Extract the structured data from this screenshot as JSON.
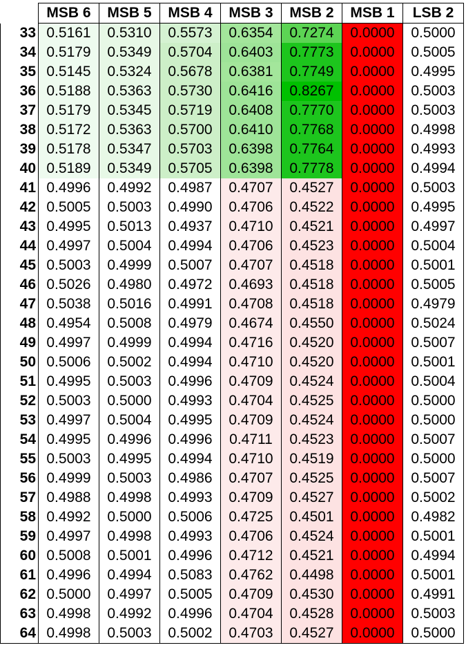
{
  "table": {
    "columns": [
      "",
      "MSB 6",
      "MSB 5",
      "MSB 4",
      "MSB 3",
      "MSB 2",
      "MSB 1",
      "LSB 2"
    ],
    "rows": [
      {
        "label": "33",
        "values": [
          "0.5161",
          "0.5310",
          "0.5573",
          "0.6354",
          "0.7274",
          "0.0000",
          "0.5000"
        ],
        "fills": [
          "#eefbef",
          "#e7f8e6",
          "#d5f2d2",
          "#a3e69b",
          "#5cd454",
          "#ff0000",
          ""
        ]
      },
      {
        "label": "34",
        "values": [
          "0.5179",
          "0.5349",
          "0.5704",
          "0.6403",
          "0.7773",
          "0.0000",
          "0.5005"
        ],
        "fills": [
          "#eefbef",
          "#e7f8e6",
          "#cdefc8",
          "#9ee498",
          "#1dc51d",
          "#ff0000",
          ""
        ]
      },
      {
        "label": "35",
        "values": [
          "0.5145",
          "0.5324",
          "0.5678",
          "0.6381",
          "0.7749",
          "0.0000",
          "0.4995"
        ],
        "fills": [
          "#eefbef",
          "#e7f8e6",
          "#cdefc8",
          "#a3e69b",
          "#1dc51d",
          "#ff0000",
          ""
        ]
      },
      {
        "label": "36",
        "values": [
          "0.5188",
          "0.5363",
          "0.5730",
          "0.6416",
          "0.8267",
          "0.0000",
          "0.5003"
        ],
        "fills": [
          "#eefbef",
          "#e7f8e6",
          "#cdefc8",
          "#9ee498",
          "#00c000",
          "#ff0000",
          ""
        ]
      },
      {
        "label": "37",
        "values": [
          "0.5179",
          "0.5345",
          "0.5719",
          "0.6408",
          "0.7770",
          "0.0000",
          "0.5003"
        ],
        "fills": [
          "#eefbef",
          "#e7f8e6",
          "#cdefc8",
          "#9ee498",
          "#1dc51d",
          "#ff0000",
          ""
        ]
      },
      {
        "label": "38",
        "values": [
          "0.5172",
          "0.5363",
          "0.5700",
          "0.6410",
          "0.7768",
          "0.0000",
          "0.4998"
        ],
        "fills": [
          "#eefbef",
          "#e7f8e6",
          "#cdefc8",
          "#9ee498",
          "#1dc51d",
          "#ff0000",
          ""
        ]
      },
      {
        "label": "39",
        "values": [
          "0.5178",
          "0.5347",
          "0.5703",
          "0.6398",
          "0.7764",
          "0.0000",
          "0.4993"
        ],
        "fills": [
          "#eefbef",
          "#e7f8e6",
          "#cdefc8",
          "#9ee498",
          "#1dc51d",
          "#ff0000",
          ""
        ]
      },
      {
        "label": "40",
        "values": [
          "0.5189",
          "0.5349",
          "0.5705",
          "0.6398",
          "0.7778",
          "0.0000",
          "0.4994"
        ],
        "fills": [
          "#eefbef",
          "#e7f8e6",
          "#cdefc8",
          "#9ee498",
          "#1dc51d",
          "#ff0000",
          ""
        ]
      },
      {
        "label": "41",
        "values": [
          "0.4996",
          "0.4992",
          "0.4987",
          "0.4707",
          "0.4527",
          "0.0000",
          "0.5003"
        ],
        "fills": [
          "",
          "",
          "",
          "#fdeaea",
          "#fde2e2",
          "#ff0000",
          ""
        ]
      },
      {
        "label": "42",
        "values": [
          "0.5005",
          "0.5003",
          "0.4990",
          "0.4706",
          "0.4522",
          "0.0000",
          "0.4995"
        ],
        "fills": [
          "",
          "",
          "",
          "#fdeaea",
          "#fde2e2",
          "#ff0000",
          ""
        ]
      },
      {
        "label": "43",
        "values": [
          "0.4995",
          "0.5013",
          "0.4937",
          "0.4710",
          "0.4521",
          "0.0000",
          "0.4997"
        ],
        "fills": [
          "",
          "",
          "",
          "#fdeaea",
          "#fde2e2",
          "#ff0000",
          ""
        ]
      },
      {
        "label": "44",
        "values": [
          "0.4997",
          "0.5004",
          "0.4994",
          "0.4706",
          "0.4523",
          "0.0000",
          "0.5004"
        ],
        "fills": [
          "",
          "",
          "",
          "#fdeaea",
          "#fde2e2",
          "#ff0000",
          ""
        ]
      },
      {
        "label": "45",
        "values": [
          "0.5003",
          "0.4999",
          "0.5007",
          "0.4707",
          "0.4518",
          "0.0000",
          "0.5001"
        ],
        "fills": [
          "",
          "",
          "",
          "#fdeaea",
          "#fde2e2",
          "#ff0000",
          ""
        ]
      },
      {
        "label": "46",
        "values": [
          "0.5026",
          "0.4980",
          "0.4972",
          "0.4693",
          "0.4518",
          "0.0000",
          "0.5005"
        ],
        "fills": [
          "",
          "",
          "",
          "#fdeaea",
          "#fde2e2",
          "#ff0000",
          ""
        ]
      },
      {
        "label": "47",
        "values": [
          "0.5038",
          "0.5016",
          "0.4991",
          "0.4708",
          "0.4518",
          "0.0000",
          "0.4979"
        ],
        "fills": [
          "",
          "",
          "",
          "#fdeaea",
          "#fde2e2",
          "#ff0000",
          ""
        ]
      },
      {
        "label": "48",
        "values": [
          "0.4954",
          "0.5008",
          "0.4979",
          "0.4674",
          "0.4550",
          "0.0000",
          "0.5024"
        ],
        "fills": [
          "",
          "",
          "",
          "#fdeaea",
          "#fde2e2",
          "#ff0000",
          ""
        ]
      },
      {
        "label": "49",
        "values": [
          "0.4997",
          "0.4999",
          "0.4994",
          "0.4716",
          "0.4520",
          "0.0000",
          "0.5007"
        ],
        "fills": [
          "",
          "",
          "",
          "#fdeaea",
          "#fde2e2",
          "#ff0000",
          ""
        ]
      },
      {
        "label": "50",
        "values": [
          "0.5006",
          "0.5002",
          "0.4994",
          "0.4710",
          "0.4520",
          "0.0000",
          "0.5001"
        ],
        "fills": [
          "",
          "",
          "",
          "#fdeaea",
          "#fde2e2",
          "#ff0000",
          ""
        ]
      },
      {
        "label": "51",
        "values": [
          "0.4995",
          "0.5003",
          "0.4996",
          "0.4709",
          "0.4524",
          "0.0000",
          "0.5004"
        ],
        "fills": [
          "",
          "",
          "",
          "#fdeaea",
          "#fde2e2",
          "#ff0000",
          ""
        ]
      },
      {
        "label": "52",
        "values": [
          "0.5003",
          "0.5000",
          "0.4993",
          "0.4704",
          "0.4525",
          "0.0000",
          "0.5000"
        ],
        "fills": [
          "",
          "",
          "",
          "#fdeaea",
          "#fde2e2",
          "#ff0000",
          ""
        ]
      },
      {
        "label": "53",
        "values": [
          "0.4997",
          "0.5004",
          "0.4995",
          "0.4709",
          "0.4524",
          "0.0000",
          "0.5000"
        ],
        "fills": [
          "",
          "",
          "",
          "#fdeaea",
          "#fde2e2",
          "#ff0000",
          ""
        ]
      },
      {
        "label": "54",
        "values": [
          "0.4995",
          "0.4996",
          "0.4996",
          "0.4711",
          "0.4523",
          "0.0000",
          "0.5007"
        ],
        "fills": [
          "",
          "",
          "",
          "#fdeaea",
          "#fde2e2",
          "#ff0000",
          ""
        ]
      },
      {
        "label": "55",
        "values": [
          "0.5003",
          "0.4995",
          "0.4994",
          "0.4710",
          "0.4519",
          "0.0000",
          "0.5000"
        ],
        "fills": [
          "",
          "",
          "",
          "#fdeaea",
          "#fde2e2",
          "#ff0000",
          ""
        ]
      },
      {
        "label": "56",
        "values": [
          "0.4999",
          "0.5003",
          "0.4986",
          "0.4707",
          "0.4525",
          "0.0000",
          "0.5007"
        ],
        "fills": [
          "",
          "",
          "",
          "#fdeaea",
          "#fde2e2",
          "#ff0000",
          ""
        ]
      },
      {
        "label": "57",
        "values": [
          "0.4988",
          "0.4998",
          "0.4993",
          "0.4709",
          "0.4527",
          "0.0000",
          "0.5002"
        ],
        "fills": [
          "",
          "",
          "",
          "#fdeaea",
          "#fde2e2",
          "#ff0000",
          ""
        ]
      },
      {
        "label": "58",
        "values": [
          "0.4992",
          "0.5000",
          "0.5006",
          "0.4725",
          "0.4501",
          "0.0000",
          "0.4982"
        ],
        "fills": [
          "",
          "",
          "",
          "#fdeaea",
          "#fde2e2",
          "#ff0000",
          ""
        ]
      },
      {
        "label": "59",
        "values": [
          "0.4997",
          "0.4998",
          "0.4993",
          "0.4706",
          "0.4524",
          "0.0000",
          "0.5001"
        ],
        "fills": [
          "",
          "",
          "",
          "#fdeaea",
          "#fde2e2",
          "#ff0000",
          ""
        ]
      },
      {
        "label": "60",
        "values": [
          "0.5008",
          "0.5001",
          "0.4996",
          "0.4712",
          "0.4521",
          "0.0000",
          "0.4994"
        ],
        "fills": [
          "",
          "",
          "",
          "#fdeaea",
          "#fde2e2",
          "#ff0000",
          ""
        ]
      },
      {
        "label": "61",
        "values": [
          "0.4996",
          "0.4994",
          "0.5083",
          "0.4762",
          "0.4498",
          "0.0000",
          "0.5001"
        ],
        "fills": [
          "",
          "",
          "",
          "#fdeaea",
          "#fde2e2",
          "#ff0000",
          ""
        ]
      },
      {
        "label": "62",
        "values": [
          "0.5000",
          "0.4997",
          "0.5005",
          "0.4709",
          "0.4530",
          "0.0000",
          "0.4991"
        ],
        "fills": [
          "",
          "",
          "",
          "#fdeaea",
          "#fde2e2",
          "#ff0000",
          ""
        ]
      },
      {
        "label": "63",
        "values": [
          "0.4998",
          "0.4992",
          "0.4996",
          "0.4704",
          "0.4528",
          "0.0000",
          "0.5003"
        ],
        "fills": [
          "",
          "",
          "",
          "#fdeaea",
          "#fde2e2",
          "#ff0000",
          ""
        ]
      },
      {
        "label": "64",
        "values": [
          "0.4998",
          "0.5003",
          "0.5002",
          "0.4703",
          "0.4527",
          "0.0000",
          "0.5000"
        ],
        "fills": [
          "",
          "",
          "",
          "#fdeaea",
          "#fde2e2",
          "#ff0000",
          ""
        ]
      }
    ]
  }
}
